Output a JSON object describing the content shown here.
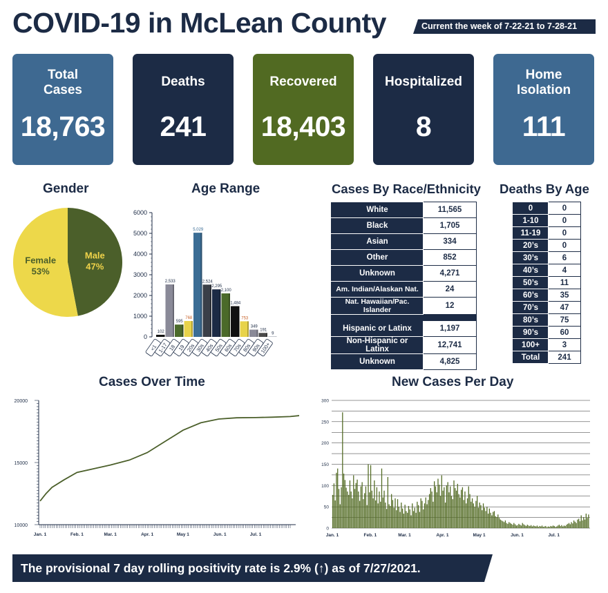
{
  "header": {
    "title": "COVID-19 in McLean County",
    "week": "Current the week of 7-22-21 to 7-28-21"
  },
  "stats": [
    {
      "label": "Total Cases",
      "value": "18,763",
      "color": "#3e6991"
    },
    {
      "label": "Deaths",
      "value": "241",
      "color": "#1c2b45"
    },
    {
      "label": "Recovered",
      "value": "18,403",
      "color": "#516a22"
    },
    {
      "label": "Hospitalized",
      "value": "8",
      "color": "#1c2b45"
    },
    {
      "label": "Home Isolation",
      "value": "111",
      "color": "#3e6991"
    }
  ],
  "sections": {
    "gender": "Gender",
    "age_range": "Age Range",
    "race": "Cases By Race/Ethnicity",
    "deaths_by_age": "Deaths By Age",
    "cases_over_time": "Cases Over Time",
    "new_cases": "New Cases Per Day"
  },
  "race_table": {
    "rows": [
      {
        "label": "White",
        "value": "11,565"
      },
      {
        "label": "Black",
        "value": "1,705"
      },
      {
        "label": "Asian",
        "value": "334"
      },
      {
        "label": "Other",
        "value": "852"
      },
      {
        "label": "Unknown",
        "value": "4,271"
      },
      {
        "label": "Am. Indian/Alaskan Nat.",
        "value": "24"
      },
      {
        "label": "Nat. Hawaiian/Pac. Islander",
        "value": "12"
      }
    ],
    "rows2": [
      {
        "label": "Hispanic or Latinx",
        "value": "1,197"
      },
      {
        "label": "Non-Hispanic or Latinx",
        "value": "12,741"
      },
      {
        "label": "Unknown",
        "value": "4,825"
      }
    ]
  },
  "deaths_by_age": [
    {
      "age": "0",
      "deaths": "0"
    },
    {
      "age": "1-10",
      "deaths": "0"
    },
    {
      "age": "11-19",
      "deaths": "0"
    },
    {
      "age": "20’s",
      "deaths": "0"
    },
    {
      "age": "30’s",
      "deaths": "6"
    },
    {
      "age": "40’s",
      "deaths": "4"
    },
    {
      "age": "50’s",
      "deaths": "11"
    },
    {
      "age": "60’s",
      "deaths": "35"
    },
    {
      "age": "70’s",
      "deaths": "47"
    },
    {
      "age": "80’s",
      "deaths": "75"
    },
    {
      "age": "90’s",
      "deaths": "60"
    },
    {
      "age": "100+",
      "deaths": "3"
    },
    {
      "age": "Total",
      "deaths": "241"
    }
  ],
  "footer": {
    "text": "The provisional 7 day rolling positivity rate is 2.9% (↑) as of 7/27/2021."
  },
  "chart_data": [
    {
      "type": "pie",
      "title": "Gender",
      "slices": [
        {
          "label": "Male",
          "value": 47,
          "display": "47%",
          "color": "#4b5f2a",
          "text_color": "#f0d34a"
        },
        {
          "label": "Female",
          "value": 53,
          "display": "53%",
          "color": "#edd84a",
          "text_color": "#4b5f2a"
        }
      ]
    },
    {
      "type": "bar",
      "title": "Age Range",
      "ylim": [
        0,
        6000
      ],
      "yticks": [
        0,
        1000,
        2000,
        3000,
        4000,
        5000,
        6000
      ],
      "categories": [
        "<1",
        "1-17",
        "18",
        "19",
        "20s",
        "30s",
        "40s",
        "50s",
        "60s",
        "70s",
        "80s",
        "90s",
        "100+"
      ],
      "values": [
        102,
        2533,
        595,
        768,
        5029,
        2524,
        2295,
        2100,
        1484,
        753,
        349,
        191,
        9
      ],
      "labels": [
        "102",
        "2,533",
        "595",
        "768",
        "5,029",
        "2,524",
        "2,295",
        "2,100",
        "1,484",
        "753",
        "349",
        "191",
        "9"
      ],
      "colors": [
        "#111111",
        "#8a8a98",
        "#4b6a2a",
        "#e8d34a",
        "#3b6d95",
        "#3a3f48",
        "#1c2b45",
        "#4b6a2a",
        "#111111",
        "#e8d34a",
        "#8a8a98",
        "#4a4a4a",
        "#1c2b45"
      ],
      "label_colors": [
        "#1c2b45",
        "#1c2b45",
        "#1c2b45",
        "#c8622a",
        "#3b6d95",
        "#1c2b45",
        "#1c2b45",
        "#1c2b45",
        "#1c2b45",
        "#c8622a",
        "#1c2b45",
        "#1c2b45",
        "#1c2b45"
      ]
    },
    {
      "type": "line",
      "title": "Cases Over Time",
      "ylim": [
        10000,
        20000
      ],
      "yticks": [
        "10000",
        "15000",
        "20000"
      ],
      "xticks": [
        "Jan. 1",
        "Feb. 1",
        "Mar. 1",
        "Apr. 1",
        "May 1",
        "Jun. 1",
        "Jul. 1"
      ],
      "x": [
        0,
        5,
        10,
        20,
        31,
        45,
        59,
        75,
        90,
        105,
        120,
        135,
        150,
        165,
        181,
        195,
        210,
        225,
        208
      ],
      "series": [
        {
          "values": [
            11900,
            12500,
            13000,
            13600,
            14200,
            14500,
            14800,
            15200,
            15800,
            16700,
            17600,
            18200,
            18500,
            18600,
            18620,
            18650,
            18700,
            18850,
            18763
          ]
        }
      ],
      "color": "#4b5f2a"
    },
    {
      "type": "bar",
      "title": "New Cases Per Day",
      "ylim": [
        0,
        300
      ],
      "yticks": [
        0,
        50,
        100,
        150,
        200,
        250,
        300
      ],
      "xticks": [
        "Jan. 1",
        "Feb. 1",
        "Mar. 1",
        "Apr. 1",
        "May 1",
        "Jun. 1",
        "Jul. 1"
      ],
      "values": [
        78,
        105,
        65,
        130,
        140,
        92,
        56,
        96,
        272,
        128,
        113,
        95,
        86,
        78,
        112,
        86,
        70,
        124,
        92,
        106,
        114,
        86,
        64,
        98,
        108,
        68,
        82,
        98,
        54,
        150,
        84,
        148,
        88,
        70,
        112,
        65,
        96,
        58,
        86,
        62,
        140,
        72,
        88,
        60,
        45,
        120,
        56,
        52,
        80,
        66,
        48,
        70,
        42,
        68,
        50,
        38,
        60,
        46,
        34,
        55,
        40,
        36,
        52,
        44,
        30,
        58,
        40,
        48,
        36,
        62,
        54,
        38,
        70,
        64,
        44,
        58,
        72,
        56,
        66,
        80,
        94,
        86,
        62,
        110,
        98,
        84,
        116,
        102,
        76,
        124,
        88,
        96,
        60,
        100,
        108,
        84,
        98,
        76,
        68,
        112,
        94,
        88,
        104,
        80,
        72,
        90,
        96,
        66,
        86,
        58,
        70,
        98,
        80,
        62,
        70,
        58,
        50,
        64,
        76,
        48,
        60,
        54,
        42,
        58,
        48,
        40,
        50,
        34,
        46,
        36,
        30,
        38,
        40,
        28,
        26,
        32,
        24,
        20,
        18,
        16,
        14,
        18,
        12,
        10,
        14,
        12,
        10,
        8,
        12,
        9,
        6,
        7,
        10,
        8,
        6,
        12,
        9,
        7,
        5,
        8,
        6,
        5,
        7,
        4,
        6,
        5,
        4,
        6,
        3,
        5,
        4,
        6,
        3,
        4,
        5,
        2,
        4,
        3,
        5,
        4,
        6,
        5,
        3,
        4,
        6,
        8,
        5,
        7,
        4,
        6,
        5,
        8,
        10,
        12,
        9,
        14,
        11,
        18,
        15,
        12,
        20,
        22,
        16,
        30,
        18,
        26,
        20,
        34,
        24,
        32
      ],
      "color": "#516a22"
    }
  ]
}
